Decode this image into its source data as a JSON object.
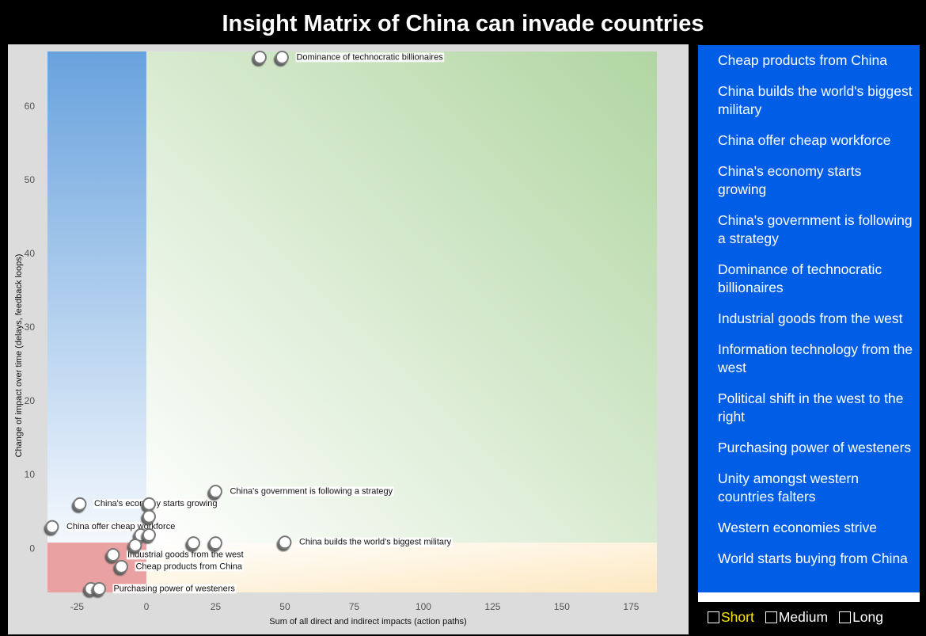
{
  "chart_data": {
    "type": "scatter",
    "title": "Insight Matrix of China can invade countries",
    "x_label": "Sum of all direct and indirect impacts (action paths)",
    "y_label": "Change of impact over time (delays, feedback loops)",
    "x": [
      41,
      49,
      25,
      -24,
      1,
      1,
      -34,
      50,
      -12,
      -9,
      -20,
      -17,
      -2,
      1,
      -4,
      17,
      25
    ],
    "y": [
      66.7,
      66.7,
      7.8,
      6.1,
      6.1,
      4.4,
      3.0,
      0.9,
      -0.8,
      -2.4,
      -5.4,
      -5.4,
      1.9,
      1.9,
      0.5,
      0.8,
      0.8
    ],
    "labels": [
      null,
      "Dominance of technocratic billionaires",
      "China's government is following a strategy",
      "China's economy starts growing",
      null,
      null,
      "China offer cheap workforce",
      "China builds the world's biggest military",
      "Industrial goods from the west",
      "Cheap products from China",
      null,
      "Purchasing power of westeners",
      null,
      null,
      null,
      null,
      null
    ],
    "xlim": [
      -35.7,
      184.3
    ],
    "xticks": [
      -25,
      0,
      25,
      50,
      75,
      100,
      125,
      150,
      175
    ],
    "ylim": [
      -5.9,
      67.5
    ],
    "yticks": [
      0,
      10,
      20,
      30,
      40,
      50,
      60
    ]
  },
  "sidebar": {
    "items": [
      "Cheap products from China",
      "China builds the world's biggest military",
      "China offer cheap workforce",
      "China's economy starts growing",
      "China's government is following a strategy",
      "Dominance of technocratic billionaires",
      "Industrial goods from the west",
      "Information technology from the west",
      "Political shift in the west to the right",
      "Purchasing power of westeners",
      "Unity amongst western countries falters",
      "Western economies strive",
      "World starts buying from China"
    ],
    "filters": [
      "Short",
      "Medium",
      "Long"
    ]
  }
}
